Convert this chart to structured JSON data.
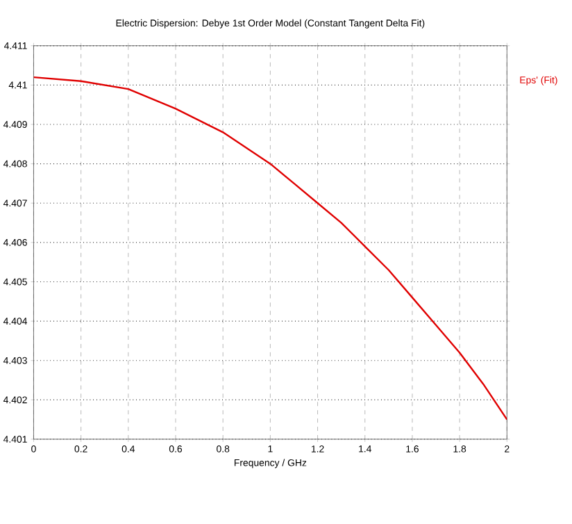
{
  "chart_data": {
    "type": "line",
    "title": "Electric Dispersion: Debye 1st Order Model (Constant Tangent Delta Fit)",
    "xlabel": "Frequency / GHz",
    "x": [
      0,
      0.2,
      0.4,
      0.6,
      0.8,
      1.0,
      1.1,
      1.2,
      1.3,
      1.4,
      1.5,
      1.6,
      1.7,
      1.8,
      1.9,
      2.0
    ],
    "series": [
      {
        "name": "Eps' (Fit)",
        "color": "#e00000",
        "values": [
          4.4102,
          4.4101,
          4.4099,
          4.4094,
          4.4088,
          4.408,
          4.4075,
          4.407,
          4.4065,
          4.4059,
          4.4053,
          4.4046,
          4.4039,
          4.4032,
          4.4024,
          4.4015
        ]
      }
    ],
    "xlim": [
      0,
      2
    ],
    "xticks": [
      0,
      0.2,
      0.4,
      0.6,
      0.8,
      1,
      1.2,
      1.4,
      1.6,
      1.8,
      2
    ],
    "ylim": [
      4.401,
      4.411
    ],
    "yticks": [
      4.401,
      4.402,
      4.403,
      4.404,
      4.405,
      4.406,
      4.407,
      4.408,
      4.409,
      4.41,
      4.411
    ],
    "grid": true,
    "legend": "top right",
    "marker": "none",
    "line_style": "solid"
  }
}
